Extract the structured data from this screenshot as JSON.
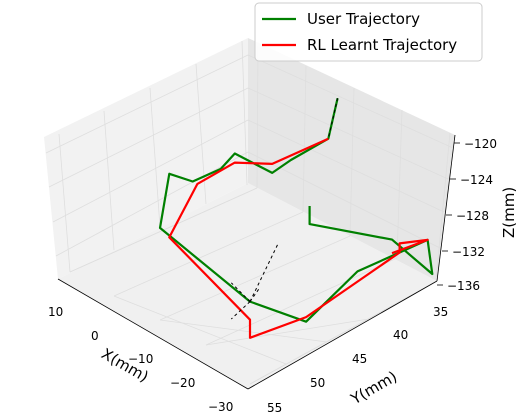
{
  "chart_data": {
    "type": "line",
    "projection": "3d",
    "title": "",
    "grid": true,
    "legend_position": "top-right",
    "axes": {
      "x": {
        "label": "X(mm)",
        "ticks": [
          "10",
          "0",
          "−10",
          "−20",
          "−30"
        ]
      },
      "y": {
        "label": "Y(mm)",
        "ticks": [
          "35",
          "40",
          "45",
          "50",
          "55"
        ]
      },
      "z": {
        "label": "Z(mm)",
        "ticks": [
          "−120",
          "−124",
          "−128",
          "−132",
          "−136"
        ]
      }
    },
    "series": [
      {
        "name": "User Trajectory",
        "color": "#008000",
        "points": [
          [
            8,
            45,
            -120.5
          ],
          [
            6,
            45,
            -124.5
          ],
          [
            -2,
            45,
            -125
          ],
          [
            -6,
            45,
            -125.5
          ],
          [
            -14,
            45,
            -121.5
          ],
          [
            -17,
            45,
            -122.5
          ],
          [
            -23,
            45,
            -122.5
          ],
          [
            -28,
            45,
            -120.5
          ],
          [
            -30,
            45,
            -126
          ],
          [
            -30,
            55,
            -129
          ],
          [
            -18,
            55,
            -134
          ],
          [
            -7,
            55,
            -131
          ],
          [
            2,
            55,
            -131
          ],
          [
            8,
            55,
            -131
          ],
          [
            9,
            55,
            -135
          ],
          [
            10,
            50,
            -134
          ],
          [
            2,
            45,
            -133
          ],
          [
            2,
            45,
            -131
          ]
        ]
      },
      {
        "name": "RL Learnt Trajectory",
        "color": "#ff0000",
        "points": [
          [
            6,
            45,
            -124.5
          ],
          [
            -6,
            45,
            -124.5
          ],
          [
            -14,
            45,
            -122.5
          ],
          [
            -22,
            45,
            -123
          ],
          [
            -28,
            45,
            -127.5
          ],
          [
            -30,
            55,
            -131
          ],
          [
            -30,
            55,
            -133
          ],
          [
            -18,
            55,
            -133.5
          ],
          [
            2,
            55,
            -131
          ],
          [
            2,
            55,
            -130
          ],
          [
            8,
            55,
            -131
          ],
          [
            10,
            50,
            -135.5
          ]
        ]
      },
      {
        "name": "",
        "style": "dashed",
        "color": "#000000",
        "segments": [
          [
            [
              8,
              45,
              -120.5
            ],
            [
              6,
              45,
              -124.5
            ]
          ],
          [
            [
              -30,
              55,
              -129
            ],
            [
              -24,
              55,
              -124
            ]
          ],
          [
            [
              -30,
              55,
              -129
            ],
            [
              -34,
              55,
              -126
            ]
          ],
          [
            [
              -30,
              55,
              -129
            ],
            [
              -34,
              55,
              -130
            ]
          ],
          [
            [
              -30,
              55,
              -129
            ],
            [
              -28,
              55,
              -128
            ]
          ]
        ]
      }
    ],
    "legend": [
      "User Trajectory",
      "RL Learnt Trajectory"
    ]
  }
}
